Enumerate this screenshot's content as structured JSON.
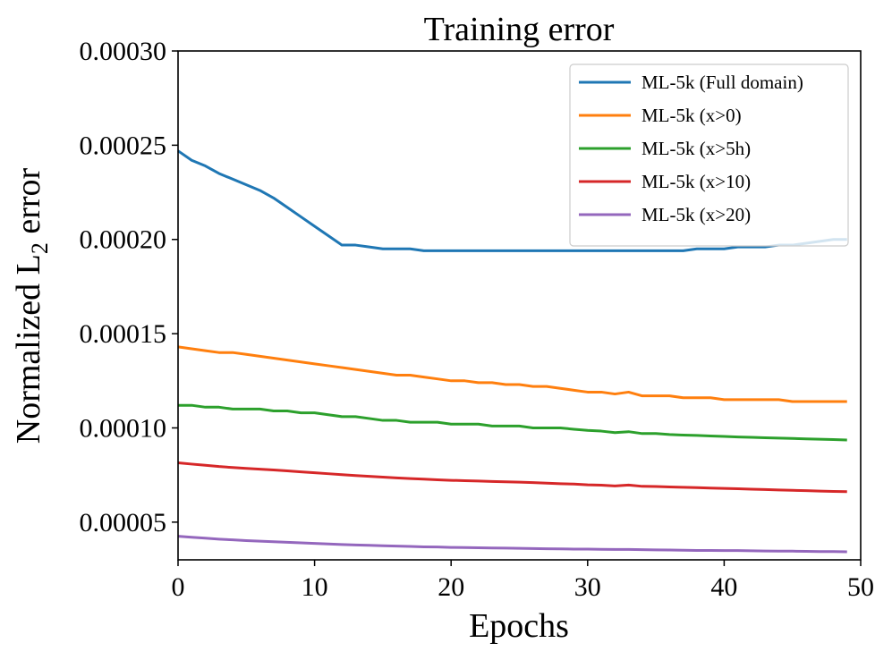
{
  "chart_data": {
    "type": "line",
    "title": "Training error",
    "xlabel": "Epochs",
    "ylabel": {
      "main": "Normalized L",
      "subscript": "2",
      "suffix": " error"
    },
    "xlim": [
      0,
      50
    ],
    "ylim": [
      3e-05,
      0.0003
    ],
    "xticks": [
      0,
      10,
      20,
      30,
      40,
      50
    ],
    "xtick_labels": [
      "0",
      "10",
      "20",
      "30",
      "40",
      "50"
    ],
    "yticks": [
      5e-05,
      0.0001,
      0.00015,
      0.0002,
      0.00025,
      0.0003
    ],
    "ytick_labels": [
      "0.00005",
      "0.00010",
      "0.00015",
      "0.00020",
      "0.00025",
      "0.00030"
    ],
    "grid": false,
    "legend_position": "top-right",
    "x": [
      0,
      1,
      2,
      3,
      4,
      5,
      6,
      7,
      8,
      9,
      10,
      11,
      12,
      13,
      14,
      15,
      16,
      17,
      18,
      19,
      20,
      21,
      22,
      23,
      24,
      25,
      26,
      27,
      28,
      29,
      30,
      31,
      32,
      33,
      34,
      35,
      36,
      37,
      38,
      39,
      40,
      41,
      42,
      43,
      44,
      45,
      46,
      47,
      48,
      49
    ],
    "series": [
      {
        "name": "ML-5k (Full domain)",
        "color": "#1f77b4",
        "values": [
          0.000247,
          0.000242,
          0.000239,
          0.000235,
          0.000232,
          0.000229,
          0.000226,
          0.000222,
          0.000217,
          0.000212,
          0.000207,
          0.000202,
          0.000197,
          0.000197,
          0.000196,
          0.000195,
          0.000195,
          0.000195,
          0.000194,
          0.000194,
          0.000194,
          0.000194,
          0.000194,
          0.000194,
          0.000194,
          0.000194,
          0.000194,
          0.000194,
          0.000194,
          0.000194,
          0.000194,
          0.000194,
          0.000194,
          0.000194,
          0.000194,
          0.000194,
          0.000194,
          0.000194,
          0.000195,
          0.000195,
          0.000195,
          0.000196,
          0.000196,
          0.000196,
          0.000197,
          0.000197,
          0.000198,
          0.000199,
          0.0002,
          0.0002
        ]
      },
      {
        "name": "ML-5k (x>0)",
        "color": "#ff7f0e",
        "values": [
          0.000143,
          0.000142,
          0.000141,
          0.00014,
          0.00014,
          0.000139,
          0.000138,
          0.000137,
          0.000136,
          0.000135,
          0.000134,
          0.000133,
          0.000132,
          0.000131,
          0.00013,
          0.000129,
          0.000128,
          0.000128,
          0.000127,
          0.000126,
          0.000125,
          0.000125,
          0.000124,
          0.000124,
          0.000123,
          0.000123,
          0.000122,
          0.000122,
          0.000121,
          0.00012,
          0.000119,
          0.000119,
          0.000118,
          0.000119,
          0.000117,
          0.000117,
          0.000117,
          0.000116,
          0.000116,
          0.000116,
          0.000115,
          0.000115,
          0.000115,
          0.000115,
          0.000115,
          0.000114,
          0.000114,
          0.000114,
          0.000114,
          0.000114
        ]
      },
      {
        "name": "ML-5k (x>5h)",
        "color": "#2ca02c",
        "values": [
          0.000112,
          0.000112,
          0.000111,
          0.000111,
          0.00011,
          0.00011,
          0.00011,
          0.000109,
          0.000109,
          0.000108,
          0.000108,
          0.000107,
          0.000106,
          0.000106,
          0.000105,
          0.000104,
          0.000104,
          0.000103,
          0.000103,
          0.000103,
          0.000102,
          0.000102,
          0.000102,
          0.000101,
          0.000101,
          0.000101,
          0.0001,
          0.0001,
          0.0001,
          9.93e-05,
          9.87e-05,
          9.83e-05,
          9.75e-05,
          9.8e-05,
          9.7e-05,
          9.7e-05,
          9.65e-05,
          9.62e-05,
          9.6e-05,
          9.57e-05,
          9.55e-05,
          9.52e-05,
          9.5e-05,
          9.48e-05,
          9.46e-05,
          9.44e-05,
          9.42e-05,
          9.4e-05,
          9.38e-05,
          9.36e-05
        ]
      },
      {
        "name": "ML-5k (x>10)",
        "color": "#d62728",
        "values": [
          8.15e-05,
          8.08e-05,
          8.02e-05,
          7.95e-05,
          7.9e-05,
          7.85e-05,
          7.81e-05,
          7.77e-05,
          7.72e-05,
          7.67e-05,
          7.62e-05,
          7.57e-05,
          7.52e-05,
          7.47e-05,
          7.43e-05,
          7.39e-05,
          7.35e-05,
          7.31e-05,
          7.28e-05,
          7.25e-05,
          7.22e-05,
          7.2e-05,
          7.18e-05,
          7.16e-05,
          7.14e-05,
          7.12e-05,
          7.1e-05,
          7.07e-05,
          7.04e-05,
          7.02e-05,
          6.98e-05,
          6.96e-05,
          6.92e-05,
          6.97e-05,
          6.9e-05,
          6.89e-05,
          6.87e-05,
          6.85e-05,
          6.83e-05,
          6.81e-05,
          6.79e-05,
          6.77e-05,
          6.75e-05,
          6.73e-05,
          6.71e-05,
          6.69e-05,
          6.67e-05,
          6.65e-05,
          6.63e-05,
          6.62e-05
        ]
      },
      {
        "name": "ML-5k (x>20)",
        "color": "#9467bd",
        "values": [
          4.25e-05,
          4.2e-05,
          4.15e-05,
          4.1e-05,
          4.06e-05,
          4.02e-05,
          3.99e-05,
          3.96e-05,
          3.93e-05,
          3.9e-05,
          3.87e-05,
          3.84e-05,
          3.81e-05,
          3.79e-05,
          3.77e-05,
          3.75e-05,
          3.73e-05,
          3.71e-05,
          3.69e-05,
          3.68e-05,
          3.66e-05,
          3.65e-05,
          3.64e-05,
          3.63e-05,
          3.62e-05,
          3.61e-05,
          3.6e-05,
          3.59e-05,
          3.58e-05,
          3.57e-05,
          3.57e-05,
          3.56e-05,
          3.55e-05,
          3.55e-05,
          3.54e-05,
          3.53e-05,
          3.52e-05,
          3.51e-05,
          3.5e-05,
          3.5e-05,
          3.49e-05,
          3.49e-05,
          3.48e-05,
          3.47e-05,
          3.46e-05,
          3.46e-05,
          3.45e-05,
          3.44e-05,
          3.44e-05,
          3.43e-05
        ]
      }
    ]
  }
}
